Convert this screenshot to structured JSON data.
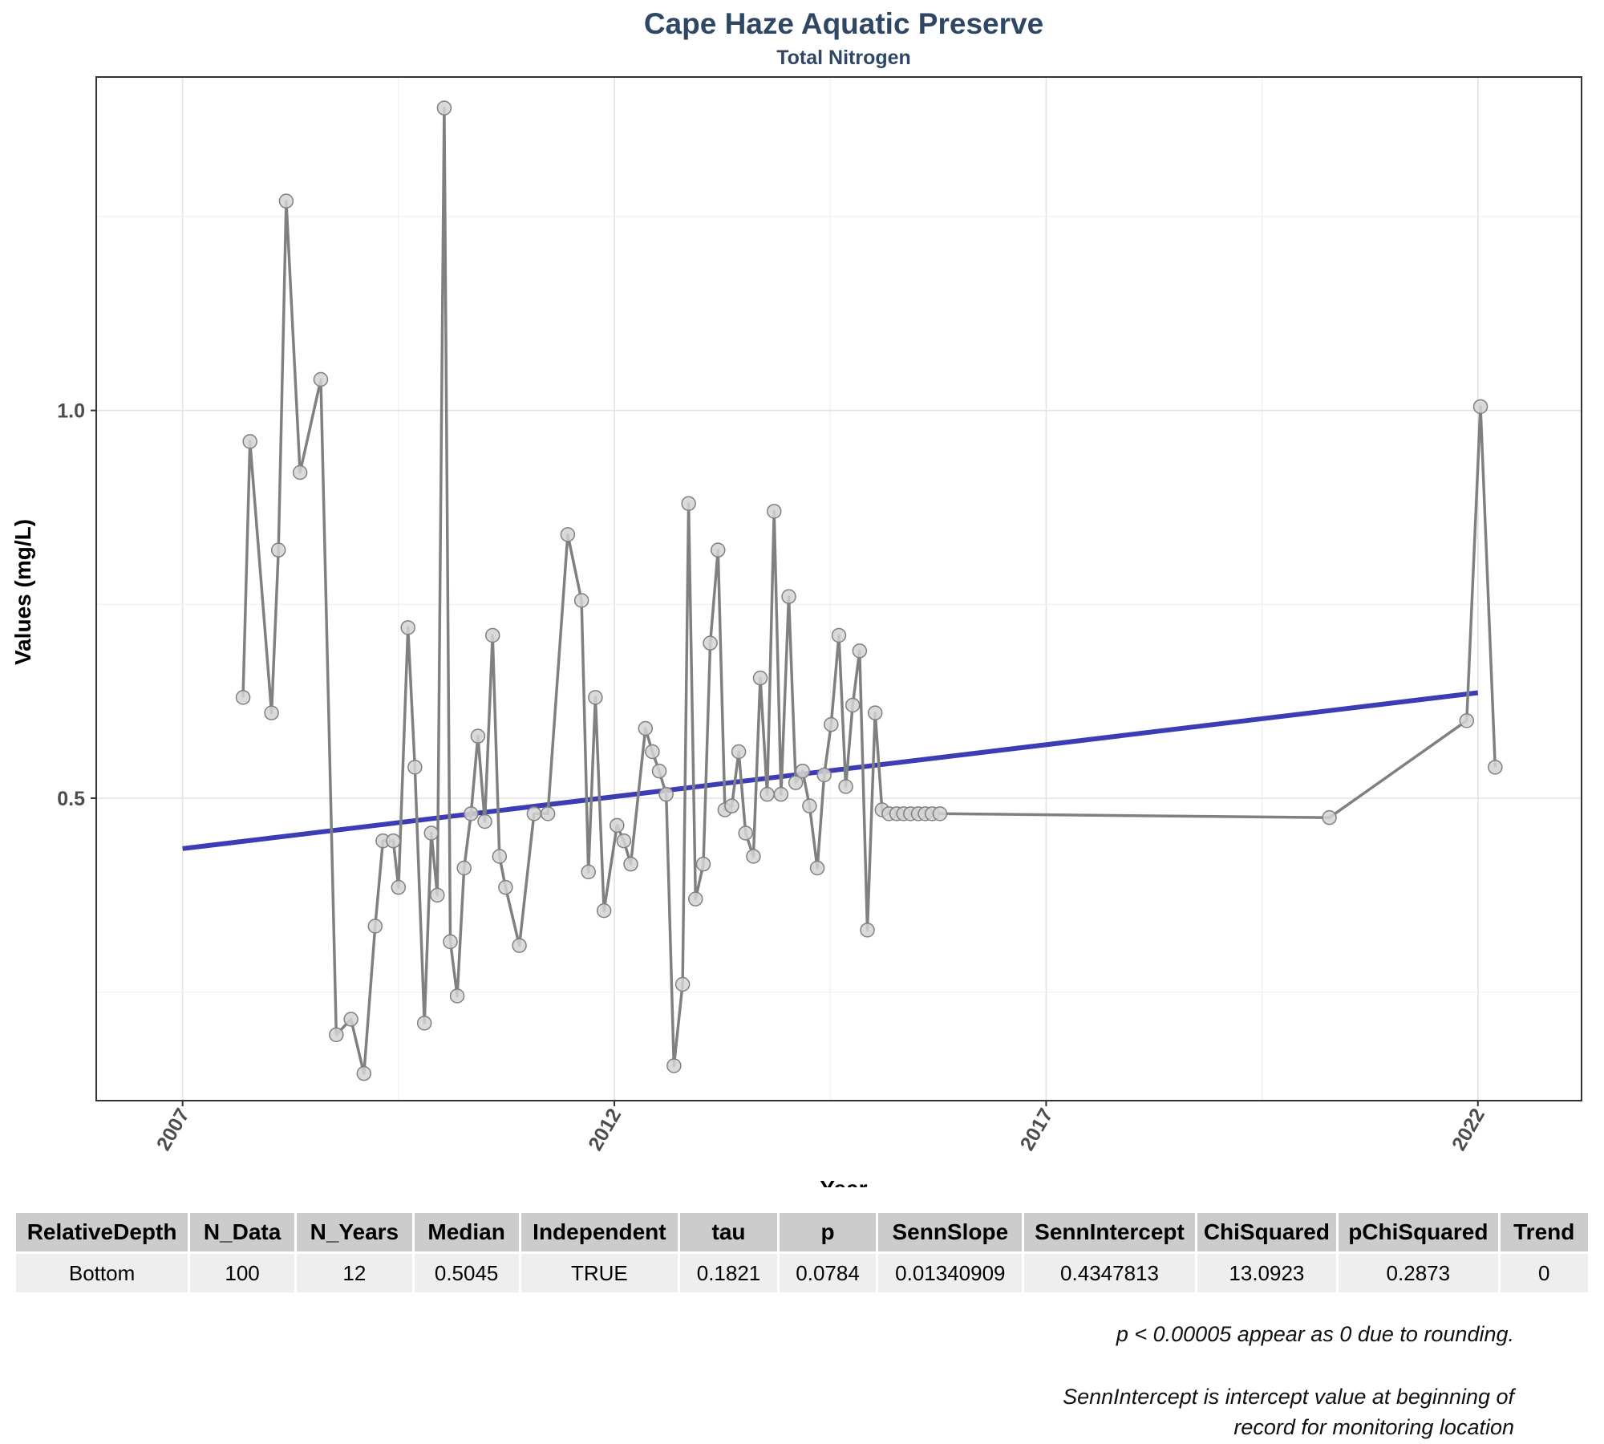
{
  "chart_data": {
    "type": "line",
    "title": "Cape Haze Aquatic Preserve",
    "subtitle": "Total Nitrogen",
    "xlabel": "Year",
    "ylabel": "Values (mg/L)",
    "xlim": [
      2006.0,
      2023.2
    ],
    "ylim": [
      0.11,
      1.43
    ],
    "x_ticks": [
      2007,
      2012,
      2017,
      2022
    ],
    "y_ticks": [
      0.5,
      1.0
    ],
    "grid": true,
    "series": [
      {
        "values_x": [
          2007.7,
          2007.78,
          2008.03,
          2008.11,
          2008.2,
          2008.36,
          2008.6,
          2008.78,
          2008.95,
          2009.1,
          2009.23,
          2009.32,
          2009.44,
          2009.5,
          2009.61,
          2009.69,
          2009.8,
          2009.88,
          2009.95,
          2010.03,
          2010.1,
          2010.18,
          2010.26,
          2010.34,
          2010.42,
          2010.5,
          2010.59,
          2010.67,
          2010.74,
          2010.9,
          2011.07,
          2011.23,
          2011.46,
          2011.62,
          2011.7,
          2011.78,
          2011.88,
          2012.03,
          2012.11,
          2012.19,
          2012.36,
          2012.44,
          2012.52,
          2012.6,
          2012.69,
          2012.79,
          2012.86,
          2012.94,
          2013.03,
          2013.11,
          2013.2,
          2013.28,
          2013.36,
          2013.44,
          2013.52,
          2013.61,
          2013.69,
          2013.77,
          2013.85,
          2013.93,
          2014.02,
          2014.1,
          2014.18,
          2014.26,
          2014.35,
          2014.43,
          2014.51,
          2014.6,
          2014.68,
          2014.76,
          2014.84,
          2014.93,
          2015.02,
          2015.1,
          2015.18,
          2015.27,
          2015.35,
          2015.43,
          2015.52,
          2015.6,
          2015.68,
          2015.77,
          2020.28,
          2021.87,
          2022.03,
          2022.2
        ],
        "values_y": [
          0.63,
          0.96,
          0.61,
          0.82,
          1.27,
          0.92,
          1.04,
          0.195,
          0.215,
          0.145,
          0.335,
          0.445,
          0.445,
          0.385,
          0.72,
          0.54,
          0.21,
          0.455,
          0.375,
          1.39,
          0.315,
          0.245,
          0.41,
          0.48,
          0.58,
          0.47,
          0.71,
          0.425,
          0.385,
          0.31,
          0.48,
          0.48,
          0.84,
          0.755,
          0.405,
          0.63,
          0.355,
          0.465,
          0.445,
          0.415,
          0.59,
          0.56,
          0.535,
          0.505,
          0.155,
          0.26,
          0.88,
          0.37,
          0.415,
          0.7,
          0.82,
          0.485,
          0.49,
          0.56,
          0.455,
          0.425,
          0.655,
          0.505,
          0.87,
          0.505,
          0.76,
          0.52,
          0.535,
          0.49,
          0.41,
          0.53,
          0.595,
          0.71,
          0.515,
          0.62,
          0.69,
          0.33,
          0.61,
          0.485,
          0.48,
          0.48,
          0.48,
          0.48,
          0.48,
          0.48,
          0.48,
          0.48,
          0.475,
          0.6,
          1.005,
          0.54
        ]
      }
    ],
    "trend_line": {
      "x": [
        2007.0,
        2022.0
      ],
      "y": [
        0.435,
        0.636
      ]
    },
    "colors": {
      "line": "#808080",
      "point_fill": "#d3d3d3",
      "point_stroke": "#808080",
      "trend": "#3c3cb4",
      "title": "#2f4764"
    }
  },
  "table": {
    "headers": [
      "RelativeDepth",
      "N_Data",
      "N_Years",
      "Median",
      "Independent",
      "tau",
      "p",
      "SennSlope",
      "SennIntercept",
      "ChiSquared",
      "pChiSquared",
      "Trend"
    ],
    "rows": [
      [
        "Bottom",
        "100",
        "12",
        "0.5045",
        "TRUE",
        "0.1821",
        "0.0784",
        "0.01340909",
        "0.4347813",
        "13.0923",
        "0.2873",
        "0"
      ]
    ]
  },
  "footnotes": {
    "note1": "p < 0.00005 appear as 0 due to rounding.",
    "note2_line1": "SennIntercept is intercept value at beginning of",
    "note2_line2": "record for monitoring location"
  }
}
